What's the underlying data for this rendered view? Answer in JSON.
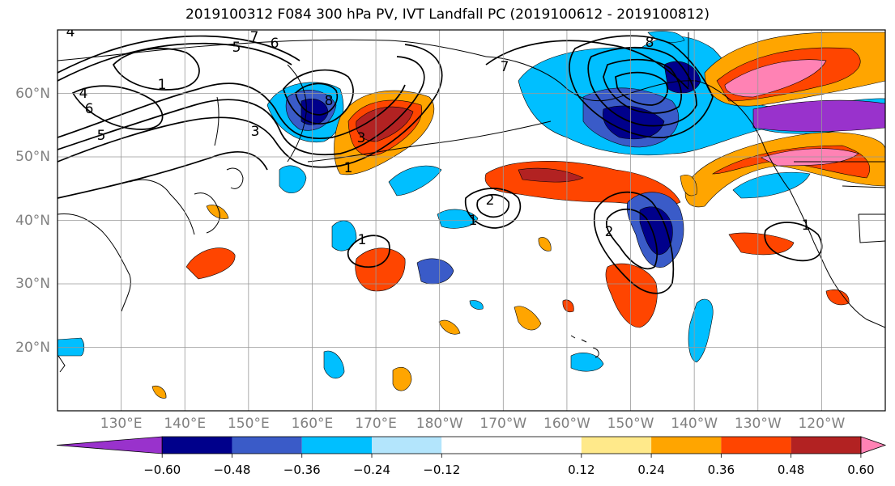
{
  "figure": {
    "title": "2019100312 F084 300 hPa PV, IVT Landfall PC (2019100612 - 2019100812)"
  },
  "map": {
    "projection": "PlateCarree",
    "lon_range": [
      120,
      250
    ],
    "lat_range": [
      10,
      70
    ],
    "lat_ticks": [
      {
        "value": 60,
        "label": "60°N"
      },
      {
        "value": 50,
        "label": "50°N"
      },
      {
        "value": 40,
        "label": "40°N"
      },
      {
        "value": 30,
        "label": "30°N"
      },
      {
        "value": 20,
        "label": "20°N"
      }
    ],
    "lon_ticks": [
      {
        "value": 130,
        "label": "130°E"
      },
      {
        "value": 140,
        "label": "140°E"
      },
      {
        "value": 150,
        "label": "150°E"
      },
      {
        "value": 160,
        "label": "160°E"
      },
      {
        "value": 170,
        "label": "170°E"
      },
      {
        "value": 180,
        "label": "180°W"
      },
      {
        "value": 190,
        "label": "170°W"
      },
      {
        "value": 200,
        "label": "160°W"
      },
      {
        "value": 210,
        "label": "150°W"
      },
      {
        "value": 220,
        "label": "140°W"
      },
      {
        "value": 230,
        "label": "130°W"
      },
      {
        "value": 240,
        "label": "120°W"
      }
    ],
    "gridlines": true,
    "coastlines": true,
    "contour_labels": [
      "4",
      "5",
      "7",
      "6",
      "1",
      "4",
      "6",
      "5",
      "3",
      "1",
      "3",
      "8",
      "2",
      "1",
      "2",
      "1",
      "8",
      "7",
      "1"
    ]
  },
  "colorbar": {
    "orientation": "horizontal",
    "extend": "both",
    "colors": [
      "#9932CC",
      "#00008B",
      "#3A5BC8",
      "#00BFFF",
      "#B3E5FC",
      "#FFFFFF",
      "#FFFFFF",
      "#FFE98A",
      "#FFA500",
      "#FF4500",
      "#B22222",
      "#FF82B4"
    ],
    "boundaries": [
      -0.72,
      -0.6,
      -0.48,
      -0.36,
      -0.24,
      -0.12,
      0.0,
      0.12,
      0.24,
      0.36,
      0.48,
      0.6,
      0.72
    ],
    "tick_labels": [
      "−0.60",
      "−0.48",
      "−0.36",
      "−0.24",
      "−0.12",
      "0.12",
      "0.24",
      "0.36",
      "0.48",
      "0.60"
    ],
    "tick_values": [
      -0.6,
      -0.48,
      -0.36,
      -0.24,
      -0.12,
      0.12,
      0.24,
      0.36,
      0.48,
      0.6
    ]
  }
}
